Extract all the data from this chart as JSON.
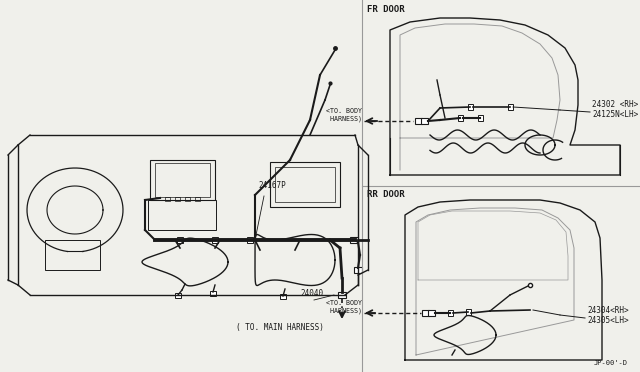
{
  "bg_color": "#f0f0eb",
  "line_color": "#1a1a1a",
  "divider_color": "#999999",
  "text_color": "#1a1a1a",
  "labels": {
    "fr_door": "FR DOOR",
    "rr_door": "RR DOOR",
    "24167P": "24167P",
    "24040": "24040",
    "to_main": "( TO. MAIN HARNESS)",
    "to_body_fr": "<TO. BODY\n HARNESS)",
    "to_body_rr": "<TO. BODY\n HARNESS)",
    "24302": "24302 <RH>",
    "24125N": "24125N<LH>",
    "24304": "24304<RH>",
    "24305": "24305<LH>",
    "part_num": "JP-00'-D"
  },
  "figsize": [
    6.4,
    3.72
  ],
  "dpi": 100
}
